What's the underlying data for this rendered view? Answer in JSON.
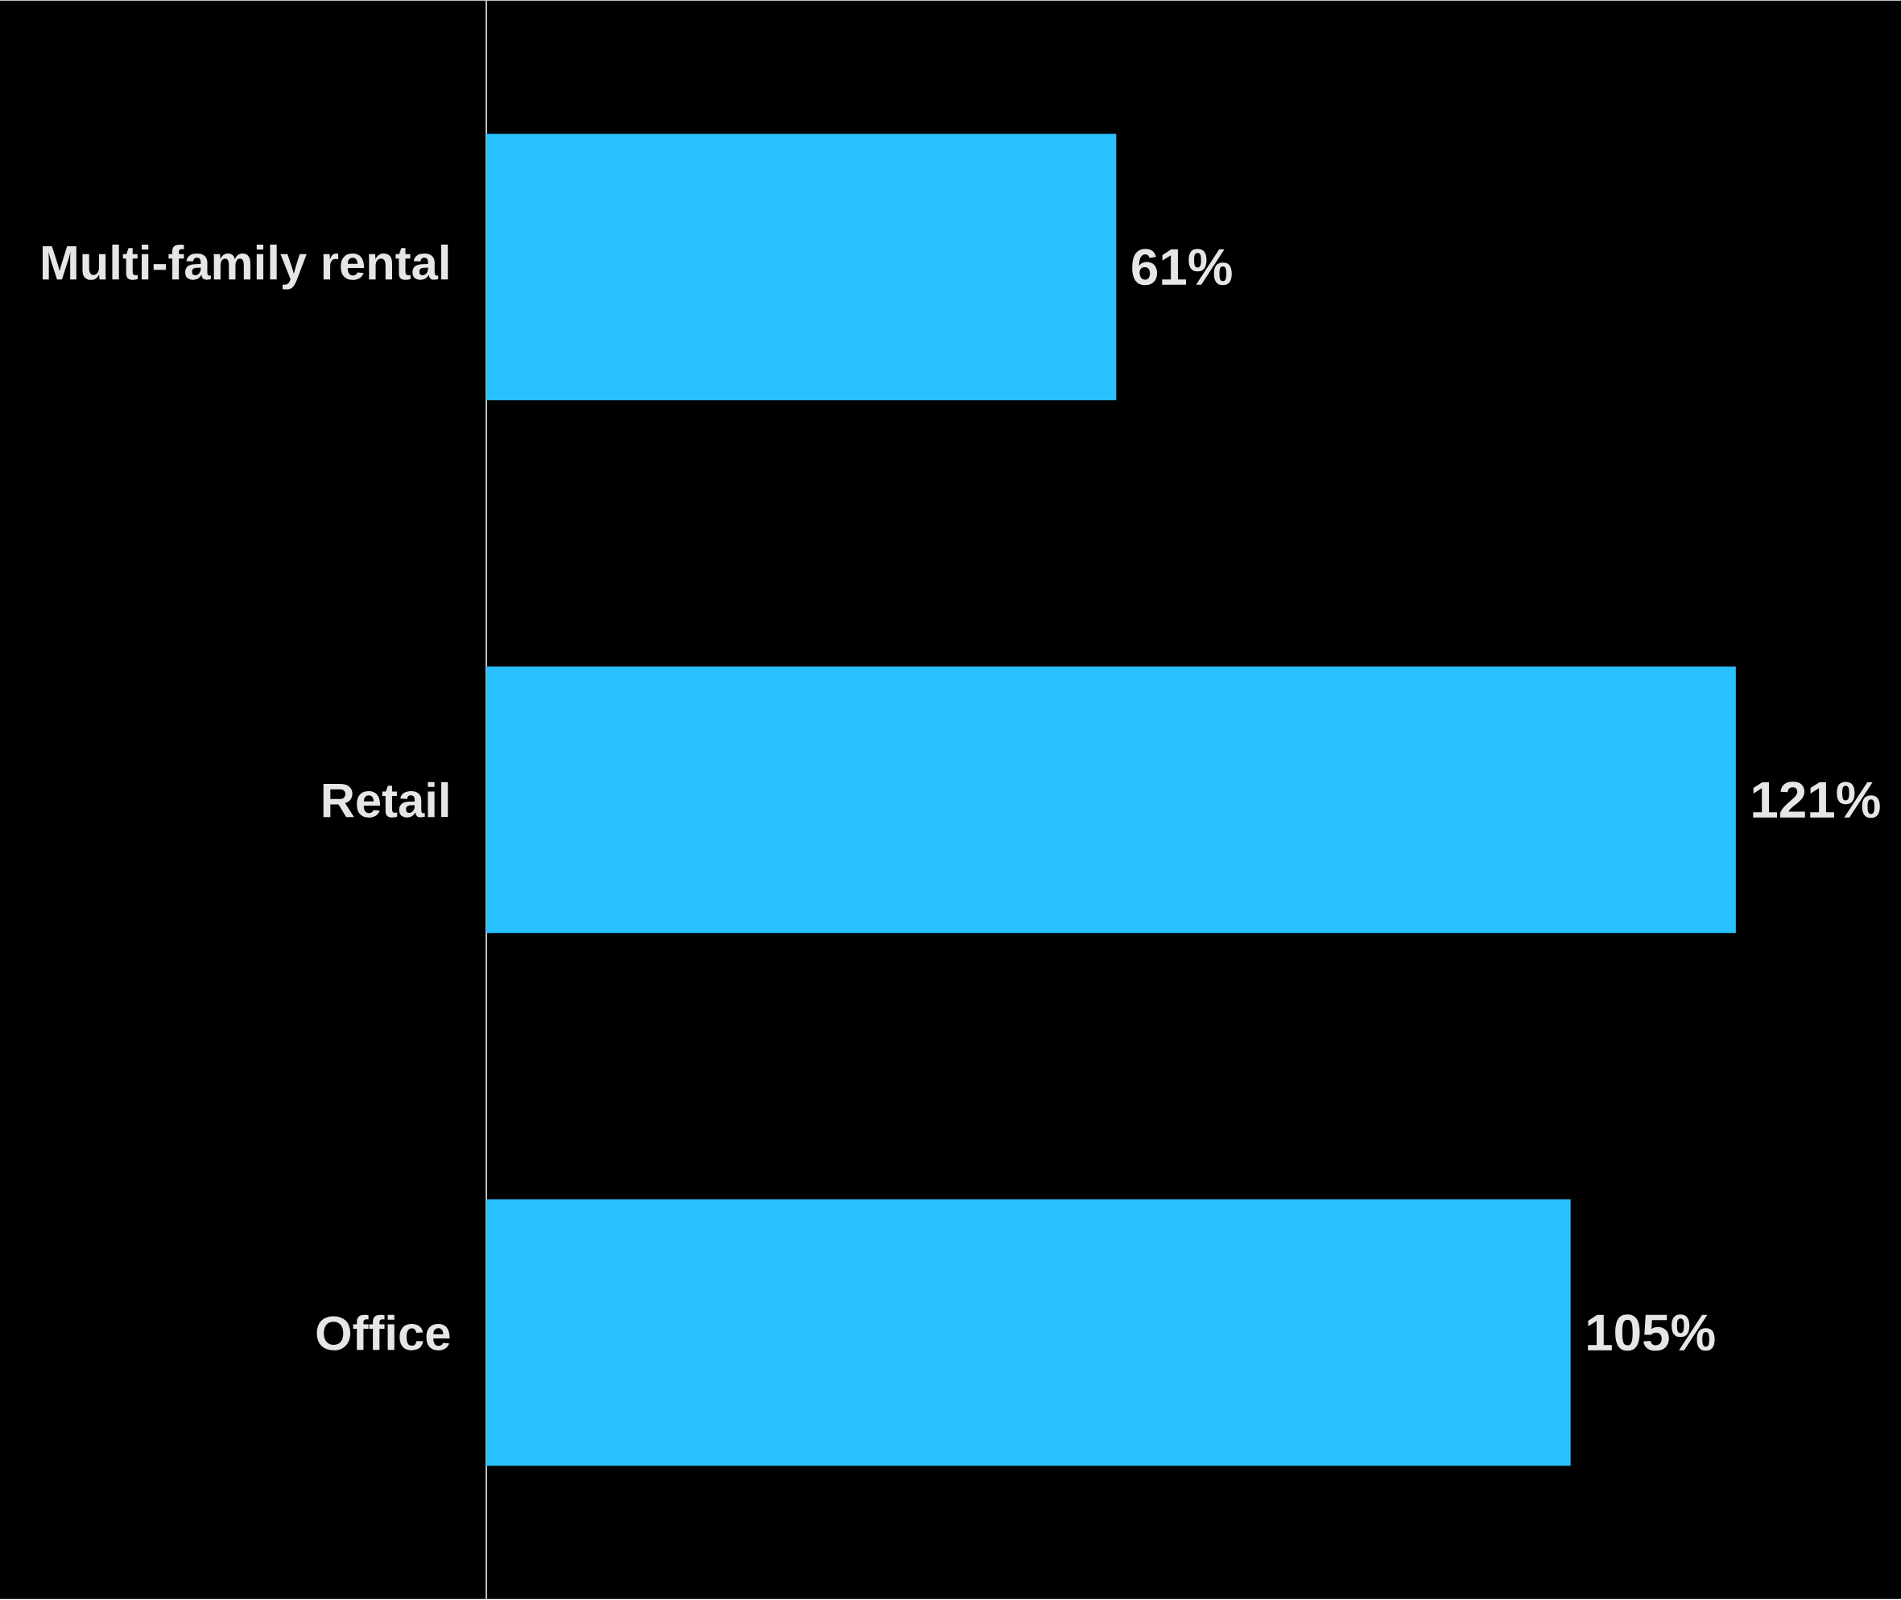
{
  "chart_data": {
    "type": "bar",
    "orientation": "horizontal",
    "categories": [
      "Multi-family rental",
      "Retail",
      "Office"
    ],
    "values": [
      61,
      121,
      105
    ],
    "value_labels": [
      "61%",
      "121%",
      "105%"
    ],
    "color": "#29c1fd",
    "xlim": [
      0,
      137
    ]
  }
}
